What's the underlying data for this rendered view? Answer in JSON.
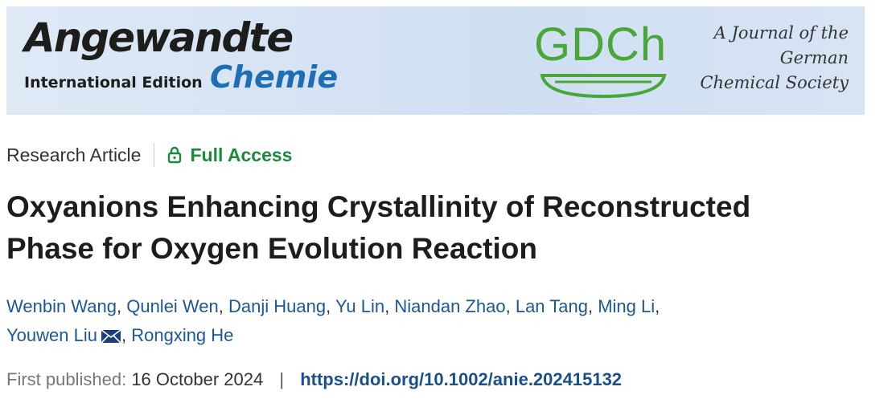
{
  "banner": {
    "logo_main": "Angewandte",
    "logo_edition": "International Edition",
    "logo_sub": "Chemie",
    "society_logo": "GDCh",
    "society_lines": [
      "A Journal of the",
      "German",
      "Chemical Society"
    ]
  },
  "article": {
    "type": "Research Article",
    "access": "Full Access",
    "title_lines": [
      "Oxyanions Enhancing Crystallinity of Reconstructed",
      "Phase for Oxygen Evolution Reaction"
    ],
    "author_separator": ",",
    "authors": [
      {
        "name": "Wenbin Wang",
        "email": false
      },
      {
        "name": "Qunlei Wen",
        "email": false
      },
      {
        "name": "Danji Huang",
        "email": false
      },
      {
        "name": "Yu Lin",
        "email": false
      },
      {
        "name": "Niandan Zhao",
        "email": false
      },
      {
        "name": "Lan Tang",
        "email": false
      },
      {
        "name": "Ming Li",
        "email": false
      },
      {
        "name": "Youwen Liu",
        "email": true
      },
      {
        "name": "Rongxing He",
        "email": false
      }
    ],
    "published_label": "First published:",
    "published_date": "16 October 2024",
    "separator": "|",
    "doi": "https://doi.org/10.1002/anie.202415132"
  }
}
